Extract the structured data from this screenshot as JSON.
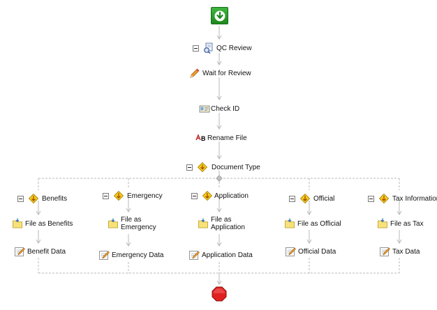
{
  "workflow": {
    "start": {
      "icon": "start-arrow-icon"
    },
    "end": {
      "icon": "stop-octagon-icon"
    },
    "main_steps": [
      {
        "label": "QC Review",
        "icon": "qc-review-icon",
        "collapsible": true
      },
      {
        "label": "Wait for Review",
        "icon": "pencil-icon",
        "collapsible": false
      },
      {
        "label": "Check ID",
        "icon": "id-card-icon",
        "collapsible": false
      },
      {
        "label": "Rename File",
        "icon": "rename-icon",
        "collapsible": false
      },
      {
        "label": "Document Type",
        "icon": "decision-diamond-icon",
        "collapsible": true
      }
    ],
    "branches": [
      {
        "label": "Benefits",
        "file_label": "File as Benefits",
        "data_label": "Benefit Data"
      },
      {
        "label": "Emergency",
        "file_label": "File as\nEmergency",
        "data_label": "Emergency Data"
      },
      {
        "label": "Application",
        "file_label": "File as\nApplication",
        "data_label": "Application Data"
      },
      {
        "label": "Official",
        "file_label": "File as Official",
        "data_label": "Official Data"
      },
      {
        "label": "Tax Information",
        "file_label": "File as Tax",
        "data_label": "Tax Data"
      }
    ],
    "colors": {
      "connector": "#b8b8b8",
      "start_green": "#2a9d2a",
      "stop_red": "#e02020",
      "diamond_yellow": "#f5cc1a"
    }
  }
}
